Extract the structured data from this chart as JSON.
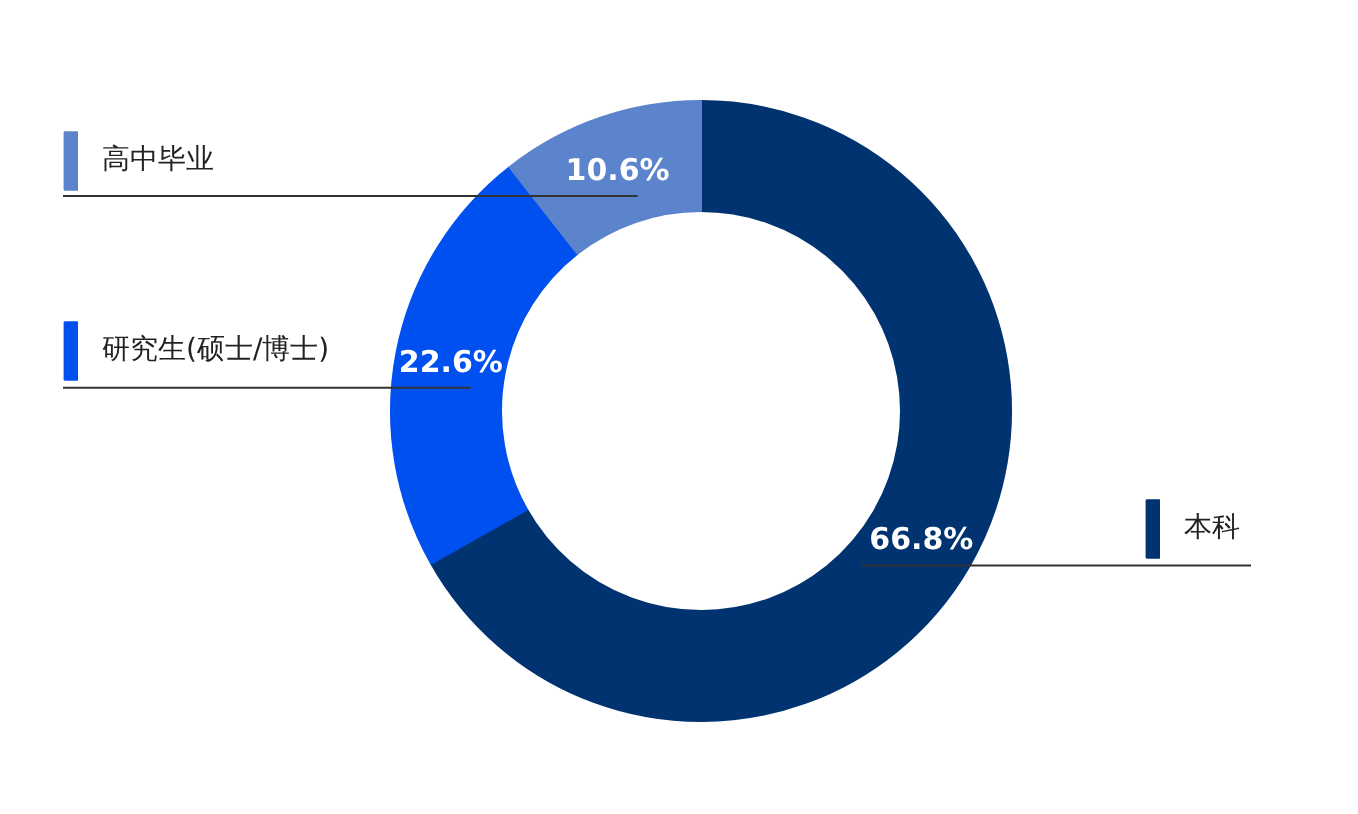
{
  "chart_data": {
    "type": "donut",
    "categories": [
      "本科",
      "研究生(硕士/博士)",
      "高中毕业"
    ],
    "values": [
      66.8,
      22.6,
      10.6
    ],
    "colors": [
      "#003370",
      "#0050f0",
      "#5b84cc"
    ],
    "data_labels": true,
    "legend": "left",
    "value_labels": [
      "66.8%",
      "22.6%",
      "10.6%"
    ]
  }
}
